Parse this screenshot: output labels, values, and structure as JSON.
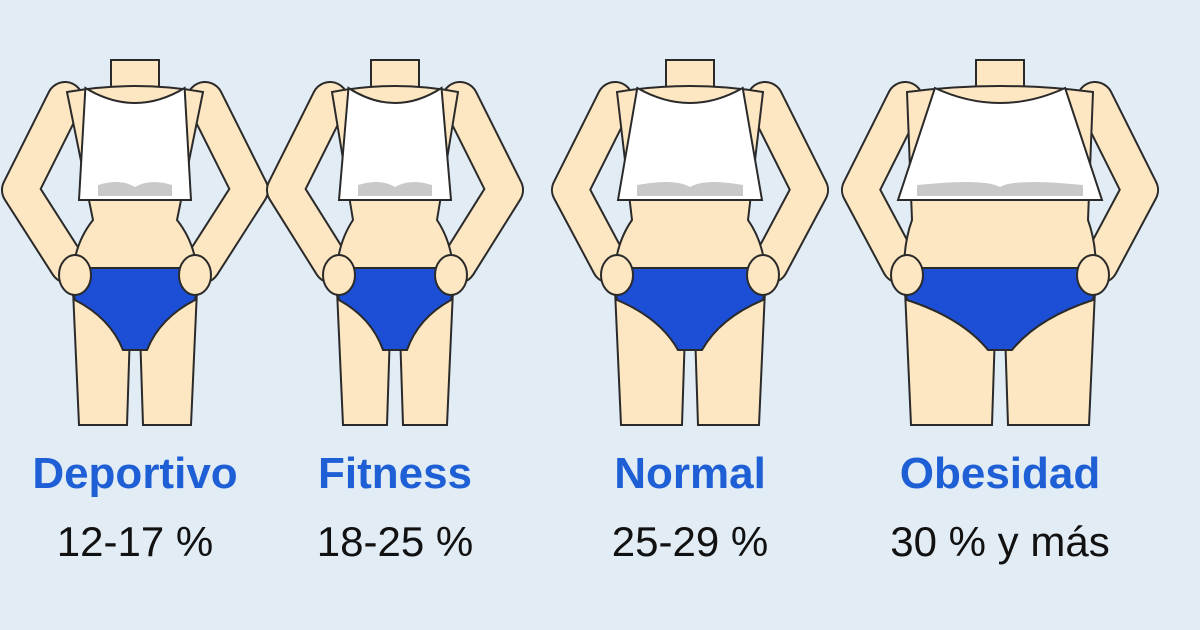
{
  "panels": [
    {
      "label": "Deportivo",
      "range": "12-17 %"
    },
    {
      "label": "Fitness",
      "range": "18-25 %"
    },
    {
      "label": "Normal",
      "range": "25-29 %"
    },
    {
      "label": "Obesidad",
      "range": "30 % y más"
    }
  ]
}
